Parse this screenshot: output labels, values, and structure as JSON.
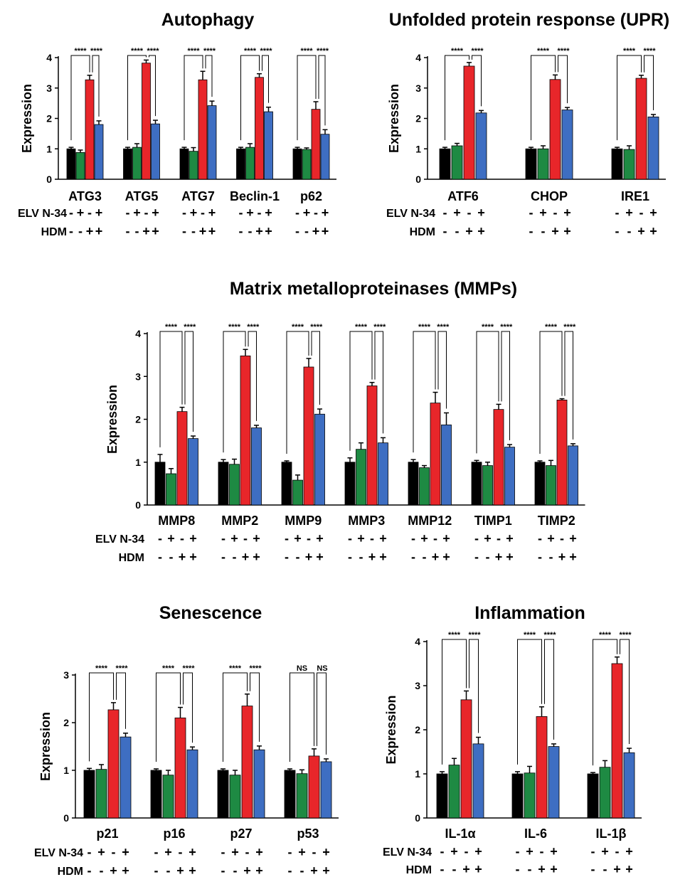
{
  "colors": {
    "bar": [
      "#000000",
      "#1e8a43",
      "#e8262a",
      "#3e6ec2"
    ],
    "line": "#000000"
  },
  "row_labels": {
    "elv": "ELV N-34",
    "hdm": "HDM"
  },
  "treatment_signs": {
    "elv": [
      "-",
      "+",
      "-",
      "+"
    ],
    "hdm": [
      "-",
      "-",
      "+",
      "+"
    ]
  },
  "chart_data": [
    {
      "type": "bar",
      "title": "Autophagy",
      "ylabel": "Expression",
      "ylim": [
        0,
        4
      ],
      "yticks": [
        0,
        1,
        2,
        3,
        4
      ],
      "categories": [
        "ATG3",
        "ATG5",
        "ATG7",
        "Beclin-1",
        "p62"
      ],
      "values": [
        [
          1.0,
          0.88,
          3.27,
          1.8
        ],
        [
          1.0,
          1.05,
          3.82,
          1.82
        ],
        [
          1.0,
          0.92,
          3.27,
          2.42
        ],
        [
          1.0,
          1.05,
          3.35,
          2.22
        ],
        [
          1.0,
          0.98,
          2.3,
          1.48
        ]
      ],
      "errors": [
        [
          0.05,
          0.08,
          0.15,
          0.12
        ],
        [
          0.05,
          0.12,
          0.1,
          0.12
        ],
        [
          0.05,
          0.12,
          0.28,
          0.15
        ],
        [
          0.05,
          0.12,
          0.12,
          0.15
        ],
        [
          0.05,
          0.05,
          0.25,
          0.15
        ]
      ],
      "significance": [
        [
          "****",
          "****"
        ],
        [
          "****",
          "****"
        ],
        [
          "****",
          "****"
        ],
        [
          "****",
          "****"
        ],
        [
          "****",
          "****"
        ]
      ]
    },
    {
      "type": "bar",
      "title": "Unfolded protein response (UPR)",
      "ylabel": "Expression",
      "ylim": [
        0,
        4
      ],
      "yticks": [
        0,
        1,
        2,
        3,
        4
      ],
      "categories": [
        "ATF6",
        "CHOP",
        "IRE1"
      ],
      "values": [
        [
          1.0,
          1.1,
          3.72,
          2.18
        ],
        [
          1.0,
          1.0,
          3.28,
          2.28
        ],
        [
          1.0,
          0.98,
          3.32,
          2.05
        ]
      ],
      "errors": [
        [
          0.05,
          0.08,
          0.12,
          0.08
        ],
        [
          0.05,
          0.1,
          0.15,
          0.08
        ],
        [
          0.05,
          0.12,
          0.1,
          0.08
        ]
      ],
      "significance": [
        [
          "****",
          "****"
        ],
        [
          "****",
          "****"
        ],
        [
          "****",
          "****"
        ]
      ]
    },
    {
      "type": "bar",
      "title": "Matrix metalloproteinases (MMPs)",
      "ylabel": "Expression",
      "ylim": [
        0,
        4
      ],
      "yticks": [
        0,
        1,
        2,
        3,
        4
      ],
      "categories": [
        "MMP8",
        "MMP2",
        "MMP9",
        "MMP3",
        "MMP12",
        "TIMP1",
        "TIMP2"
      ],
      "values": [
        [
          1.0,
          0.73,
          2.18,
          1.55
        ],
        [
          1.0,
          0.95,
          3.48,
          1.8
        ],
        [
          1.0,
          0.58,
          3.22,
          2.12
        ],
        [
          1.0,
          1.3,
          2.78,
          1.45
        ],
        [
          1.0,
          0.87,
          2.38,
          1.87
        ],
        [
          1.0,
          0.92,
          2.23,
          1.35
        ],
        [
          1.0,
          0.92,
          2.45,
          1.38
        ]
      ],
      "errors": [
        [
          0.18,
          0.12,
          0.1,
          0.06
        ],
        [
          0.06,
          0.12,
          0.15,
          0.06
        ],
        [
          0.03,
          0.12,
          0.2,
          0.12
        ],
        [
          0.1,
          0.15,
          0.08,
          0.12
        ],
        [
          0.06,
          0.05,
          0.25,
          0.28
        ],
        [
          0.04,
          0.08,
          0.12,
          0.06
        ],
        [
          0.03,
          0.12,
          0.03,
          0.05
        ]
      ],
      "significance": [
        [
          "****",
          "****"
        ],
        [
          "****",
          "****"
        ],
        [
          "****",
          "****"
        ],
        [
          "****",
          "****"
        ],
        [
          "****",
          "****"
        ],
        [
          "****",
          "****"
        ],
        [
          "****",
          "****"
        ]
      ]
    },
    {
      "type": "bar",
      "title": "Senescence",
      "ylabel": "Expression",
      "ylim": [
        0,
        3
      ],
      "yticks": [
        0,
        1,
        2,
        3
      ],
      "categories": [
        "p21",
        "p16",
        "p27",
        "p53"
      ],
      "values": [
        [
          1.0,
          1.02,
          2.27,
          1.7
        ],
        [
          1.0,
          0.9,
          2.1,
          1.43
        ],
        [
          1.0,
          0.9,
          2.35,
          1.43
        ],
        [
          1.0,
          0.93,
          1.3,
          1.18
        ]
      ],
      "errors": [
        [
          0.04,
          0.1,
          0.15,
          0.08
        ],
        [
          0.03,
          0.1,
          0.22,
          0.06
        ],
        [
          0.03,
          0.1,
          0.25,
          0.08
        ],
        [
          0.03,
          0.08,
          0.15,
          0.06
        ]
      ],
      "significance": [
        [
          "****",
          "****"
        ],
        [
          "****",
          "****"
        ],
        [
          "****",
          "****"
        ],
        [
          "NS",
          "NS"
        ]
      ]
    },
    {
      "type": "bar",
      "title": "Inflammation",
      "ylabel": "Expression",
      "ylim": [
        0,
        4
      ],
      "yticks": [
        0,
        1,
        2,
        3,
        4
      ],
      "categories": [
        "IL-1α",
        "IL-6",
        "IL-1β"
      ],
      "values": [
        [
          1.0,
          1.2,
          2.68,
          1.68
        ],
        [
          1.0,
          1.02,
          2.3,
          1.62
        ],
        [
          1.0,
          1.15,
          3.5,
          1.48
        ]
      ],
      "errors": [
        [
          0.05,
          0.15,
          0.2,
          0.15
        ],
        [
          0.05,
          0.15,
          0.22,
          0.06
        ],
        [
          0.03,
          0.15,
          0.15,
          0.1
        ]
      ],
      "significance": [
        [
          "****",
          "****"
        ],
        [
          "****",
          "****"
        ],
        [
          "****",
          "****"
        ]
      ]
    }
  ]
}
